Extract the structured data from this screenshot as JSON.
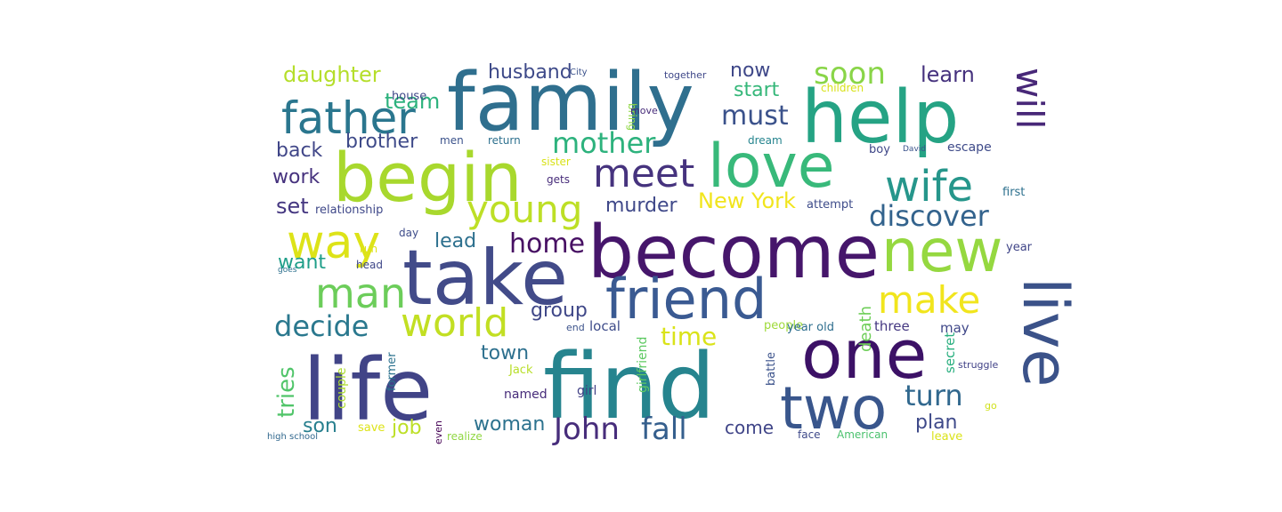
{
  "words": [
    {
      "text": "family",
      "color": "#2f6f8e"
    },
    {
      "text": "help",
      "color": "#25a384"
    },
    {
      "text": "become",
      "color": "#46166b"
    },
    {
      "text": "begin",
      "color": "#a8d82d"
    },
    {
      "text": "love",
      "color": "#38b97a"
    },
    {
      "text": "take",
      "color": "#424b89"
    },
    {
      "text": "new",
      "color": "#95d840"
    },
    {
      "text": "friend",
      "color": "#3a5a92"
    },
    {
      "text": "life",
      "color": "#414487"
    },
    {
      "text": "find",
      "color": "#26848e"
    },
    {
      "text": "one",
      "color": "#3c1166"
    },
    {
      "text": "two",
      "color": "#39568c"
    },
    {
      "text": "live",
      "color": "#3b5289"
    },
    {
      "text": "father",
      "color": "#2a768e"
    },
    {
      "text": "will",
      "color": "#482878"
    },
    {
      "text": "wife",
      "color": "#26968b"
    },
    {
      "text": "meet",
      "color": "#46337e"
    },
    {
      "text": "way",
      "color": "#dde318"
    },
    {
      "text": "young",
      "color": "#bddf26"
    },
    {
      "text": "man",
      "color": "#6ccd5a"
    },
    {
      "text": "world",
      "color": "#c2df23"
    },
    {
      "text": "make",
      "color": "#f1e51d"
    },
    {
      "text": "discover",
      "color": "#33638d"
    },
    {
      "text": "soon",
      "color": "#89d548"
    },
    {
      "text": "mother",
      "color": "#2db27d"
    },
    {
      "text": "must",
      "color": "#3b528b"
    },
    {
      "text": "decide",
      "color": "#2a788e"
    },
    {
      "text": "John",
      "color": "#472d7b"
    },
    {
      "text": "fall",
      "color": "#355f8d"
    },
    {
      "text": "turn",
      "color": "#31688e"
    },
    {
      "text": "home",
      "color": "#471063"
    },
    {
      "text": "time",
      "color": "#dae319"
    },
    {
      "text": "daughter",
      "color": "#b5de2b"
    },
    {
      "text": "team",
      "color": "#2db27d"
    },
    {
      "text": "husband",
      "color": "#3e4a89"
    },
    {
      "text": "now",
      "color": "#3f4889"
    },
    {
      "text": "learn",
      "color": "#46327e"
    },
    {
      "text": "start",
      "color": "#35b779"
    },
    {
      "text": "back",
      "color": "#404688"
    },
    {
      "text": "brother",
      "color": "#3e4a89"
    },
    {
      "text": "work",
      "color": "#46327e"
    },
    {
      "text": "set",
      "color": "#453781"
    },
    {
      "text": "murder",
      "color": "#3f4889"
    },
    {
      "text": "New York",
      "color": "#f1e51d"
    },
    {
      "text": "lead",
      "color": "#2d708e"
    },
    {
      "text": "want",
      "color": "#1f9e89"
    },
    {
      "text": "group",
      "color": "#3f4788"
    },
    {
      "text": "town",
      "color": "#2d708e"
    },
    {
      "text": "tries",
      "color": "#51c56a"
    },
    {
      "text": "son",
      "color": "#277f8e"
    },
    {
      "text": "job",
      "color": "#bddf26"
    },
    {
      "text": "woman",
      "color": "#2c728e"
    },
    {
      "text": "plan",
      "color": "#3e4989"
    },
    {
      "text": "come",
      "color": "#404588"
    },
    {
      "text": "death",
      "color": "#6ece58"
    },
    {
      "text": "relationship",
      "color": "#3f4889"
    },
    {
      "text": "attempt",
      "color": "#3e4c8a"
    },
    {
      "text": "three",
      "color": "#453882"
    },
    {
      "text": "people",
      "color": "#9fda3a"
    },
    {
      "text": "local",
      "color": "#3e4c8a"
    },
    {
      "text": "year old",
      "color": "#2e6e8e"
    },
    {
      "text": "may",
      "color": "#3f4788"
    },
    {
      "text": "end",
      "color": "#3b528b"
    },
    {
      "text": "battle",
      "color": "#3b528b"
    },
    {
      "text": "secret",
      "color": "#29af7f"
    },
    {
      "text": "struggle",
      "color": "#414287"
    },
    {
      "text": "girlfriend",
      "color": "#5ec962"
    },
    {
      "text": "girl",
      "color": "#424186"
    },
    {
      "text": "former",
      "color": "#2c728e"
    },
    {
      "text": "named",
      "color": "#472c7a"
    },
    {
      "text": "couple",
      "color": "#addc30"
    },
    {
      "text": "Jack",
      "color": "#b8de29"
    },
    {
      "text": "save",
      "color": "#dde318"
    },
    {
      "text": "even",
      "color": "#440154"
    },
    {
      "text": "realize",
      "color": "#90d743"
    },
    {
      "text": "high school",
      "color": "#31688e"
    },
    {
      "text": "face",
      "color": "#3e4989"
    },
    {
      "text": "American",
      "color": "#4ac16d"
    },
    {
      "text": "leave",
      "color": "#dae319"
    },
    {
      "text": "go",
      "color": "#d0e11c"
    },
    {
      "text": "house",
      "color": "#3f4889"
    },
    {
      "text": "City",
      "color": "#3b528b"
    },
    {
      "text": "bring",
      "color": "#8fd744"
    },
    {
      "text": "move",
      "color": "#472c7a"
    },
    {
      "text": "together",
      "color": "#3f4889"
    },
    {
      "text": "children",
      "color": "#d8e219"
    },
    {
      "text": "men",
      "color": "#3b528b"
    },
    {
      "text": "return",
      "color": "#2d708e"
    },
    {
      "text": "dream",
      "color": "#25848e"
    },
    {
      "text": "boy",
      "color": "#3f4788"
    },
    {
      "text": "David",
      "color": "#3b528b"
    },
    {
      "text": "escape",
      "color": "#3e4a89"
    },
    {
      "text": "sister",
      "color": "#d8e219"
    },
    {
      "text": "gets",
      "color": "#472c7a"
    },
    {
      "text": "first",
      "color": "#2d708e"
    },
    {
      "text": "year",
      "color": "#404588"
    },
    {
      "text": "day",
      "color": "#3e4c8a"
    },
    {
      "text": "run",
      "color": "#dde318"
    },
    {
      "text": "head",
      "color": "#3f4889"
    },
    {
      "text": "goes",
      "color": "#2d708e"
    }
  ]
}
